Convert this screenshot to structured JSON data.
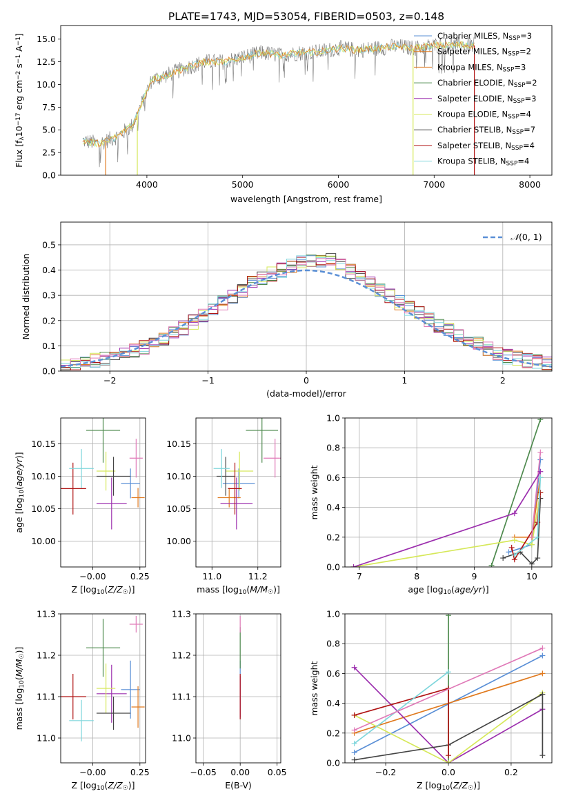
{
  "figure_title": "PLATE=1743, MJD=53054, FIBERID=0503, z=0.148",
  "colors": {
    "c1": "#5a8fd6",
    "c2": "#e07a1f",
    "c3": "#4e8a4e",
    "c4": "#9c2fae",
    "c5": "#d6e85a",
    "c6": "#444444",
    "c7": "#b01414",
    "c8": "#7fd6dc",
    "c9": "#e07ab8",
    "spec": "#777777"
  },
  "chart_data": [
    {
      "id": "spectrum",
      "type": "line",
      "title": "",
      "xlabel": "wavelength [Angstrom, rest frame]",
      "ylabel": "Flux [f_λ10^-17 erg cm^-2 s^-1 A^-1]",
      "xlim": [
        3100,
        8230
      ],
      "ylim": [
        0,
        16.5
      ],
      "xticks": [
        4000,
        5000,
        6000,
        7000,
        8000
      ],
      "yticks": [
        0.0,
        2.5,
        5.0,
        7.5,
        10.0,
        12.5,
        15.0
      ],
      "data_range": [
        3330,
        7420
      ],
      "envelope": {
        "x": [
          3330,
          3500,
          3700,
          3850,
          3950,
          4050,
          4200,
          4400,
          4600,
          4800,
          5000,
          5200,
          5400,
          5600,
          5800,
          6000,
          6200,
          6400,
          6600,
          6800,
          7000,
          7200,
          7420
        ],
        "y": [
          3.8,
          3.5,
          4.3,
          5.5,
          8.0,
          10.5,
          11.0,
          11.8,
          12.5,
          12.5,
          13.0,
          13.5,
          13.2,
          13.5,
          13.6,
          14.0,
          13.8,
          14.0,
          14.2,
          14.0,
          14.3,
          14.4,
          14.3
        ]
      },
      "legend": [
        {
          "label": "Chabrier MILES, N_SSP=3",
          "color": "#5a8fd6"
        },
        {
          "label": "Salpeter MILES, N_SSP=2",
          "color": "#e07a1f"
        },
        {
          "label": "Kroupa MILES, N_SSP=3",
          "color": "#e07a1f"
        },
        {
          "label": "Chabrier ELODIE, N_SSP=2",
          "color": "#4e8a4e"
        },
        {
          "label": "Salpeter ELODIE, N_SSP=3",
          "color": "#9c2fae"
        },
        {
          "label": "Kroupa ELODIE, N_SSP=4",
          "color": "#d6e85a"
        },
        {
          "label": "Chabrier STELIB, N_SSP=7",
          "color": "#444444"
        },
        {
          "label": "Salpeter STELIB, N_SSP=4",
          "color": "#b01414"
        },
        {
          "label": "Kroupa STELIB, N_SSP=4",
          "color": "#7fd6dc"
        }
      ]
    },
    {
      "id": "residuals",
      "type": "line",
      "xlabel": "(data-model)/error",
      "ylabel": "Normed distribution",
      "xlim": [
        -2.5,
        2.5
      ],
      "ylim": [
        0,
        0.59
      ],
      "xticks": [
        -2,
        -1,
        0,
        1,
        2
      ],
      "yticks": [
        0.0,
        0.1,
        0.2,
        0.3,
        0.4,
        0.5
      ],
      "grid": true,
      "legend": [
        {
          "label": "N(0,1)",
          "color": "#5a8fd6",
          "style": "dashed"
        }
      ],
      "bin_width": 0.1,
      "hist_envelope": {
        "x": [
          -2.5,
          -2.0,
          -1.5,
          -1.0,
          -0.5,
          0.0,
          0.3,
          0.5,
          1.0,
          1.5,
          2.0,
          2.5
        ],
        "y": [
          0.02,
          0.05,
          0.11,
          0.23,
          0.36,
          0.44,
          0.44,
          0.38,
          0.26,
          0.15,
          0.06,
          0.025
        ]
      }
    },
    {
      "id": "age_vs_Z",
      "type": "scatter",
      "xlabel": "Z [log10(Z/Z☉)]",
      "ylabel": "age  [log10(age/yr)]",
      "xlim": [
        -0.17,
        0.28
      ],
      "ylim": [
        9.96,
        10.19
      ],
      "xticks": [
        "-0.00",
        "0.25"
      ],
      "yticks": [
        10.0,
        10.05,
        10.1,
        10.15
      ],
      "grid": true,
      "points": [
        {
          "x": 0.2,
          "xerr": 0.05,
          "y": 10.089,
          "yerr": 0.023,
          "color": "#5a8fd6"
        },
        {
          "x": 0.24,
          "xerr": 0.035,
          "y": 10.067,
          "yerr": 0.015,
          "color": "#e07a1f"
        },
        {
          "x": 0.055,
          "xerr": 0.09,
          "y": 10.171,
          "yerr": 0.05,
          "color": "#4e8a4e"
        },
        {
          "x": 0.1,
          "xerr": 0.08,
          "y": 10.058,
          "yerr": 0.04,
          "color": "#9c2fae"
        },
        {
          "x": 0.07,
          "xerr": 0.05,
          "y": 10.108,
          "yerr": 0.03,
          "color": "#d6e85a"
        },
        {
          "x": 0.11,
          "xerr": 0.09,
          "y": 10.1,
          "yerr": 0.03,
          "color": "#444444"
        },
        {
          "x": -0.105,
          "xerr": 0.07,
          "y": 10.081,
          "yerr": 0.04,
          "color": "#b01414"
        },
        {
          "x": -0.06,
          "xerr": 0.065,
          "y": 10.112,
          "yerr": 0.03,
          "color": "#7fd6dc"
        },
        {
          "x": 0.23,
          "xerr": 0.035,
          "y": 10.128,
          "yerr": 0.03,
          "color": "#e07ab8"
        }
      ]
    },
    {
      "id": "age_vs_mass",
      "type": "scatter",
      "xlabel": "mass [log10(M/M☉)]",
      "ylabel": "",
      "xlim": [
        10.93,
        11.3
      ],
      "ylim": [
        9.96,
        10.19
      ],
      "xticks": [
        11.0,
        11.2
      ],
      "yticks": [
        10.0,
        10.05,
        10.1,
        10.15
      ],
      "grid": true,
      "points": [
        {
          "x": 11.117,
          "xerr": 0.07,
          "y": 10.089,
          "yerr": 0.023,
          "color": "#5a8fd6"
        },
        {
          "x": 11.075,
          "xerr": 0.05,
          "y": 10.067,
          "yerr": 0.015,
          "color": "#e07a1f"
        },
        {
          "x": 11.218,
          "xerr": 0.07,
          "y": 10.171,
          "yerr": 0.05,
          "color": "#4e8a4e"
        },
        {
          "x": 11.107,
          "xerr": 0.07,
          "y": 10.058,
          "yerr": 0.04,
          "color": "#9c2fae"
        },
        {
          "x": 11.12,
          "xerr": 0.06,
          "y": 10.108,
          "yerr": 0.03,
          "color": "#d6e85a"
        },
        {
          "x": 11.06,
          "xerr": 0.04,
          "y": 10.1,
          "yerr": 0.03,
          "color": "#444444"
        },
        {
          "x": 11.1,
          "xerr": 0.03,
          "y": 10.081,
          "yerr": 0.04,
          "color": "#b01414"
        },
        {
          "x": 11.042,
          "xerr": 0.035,
          "y": 10.112,
          "yerr": 0.03,
          "color": "#7fd6dc"
        },
        {
          "x": 11.275,
          "xerr": 0.05,
          "y": 10.128,
          "yerr": 0.03,
          "color": "#e07ab8"
        }
      ]
    },
    {
      "id": "weight_vs_age",
      "type": "line",
      "xlabel": "age  [log10(age/yr)]",
      "ylabel": "mass weight",
      "xlim": [
        6.75,
        10.35
      ],
      "ylim": [
        0,
        1.0
      ],
      "xticks": [
        7,
        8,
        9,
        10
      ],
      "yticks": [
        0.0,
        0.2,
        0.4,
        0.6,
        0.8,
        1.0
      ],
      "grid": true,
      "series": [
        {
          "color": "#5a8fd6",
          "x": [
            9.6,
            10.0,
            10.15
          ],
          "y": [
            0.1,
            0.15,
            0.72
          ]
        },
        {
          "color": "#e07a1f",
          "x": [
            9.7,
            10.0,
            10.15
          ],
          "y": [
            0.2,
            0.2,
            0.6
          ]
        },
        {
          "color": "#4e8a4e",
          "x": [
            9.3,
            10.15
          ],
          "y": [
            0.01,
            0.99
          ]
        },
        {
          "color": "#d6e85a",
          "x": [
            6.9,
            9.7,
            10.0,
            10.15
          ],
          "y": [
            0.0,
            0.18,
            0.15,
            0.5
          ]
        },
        {
          "color": "#444444",
          "x": [
            9.5,
            9.8,
            10.0,
            10.1,
            10.15
          ],
          "y": [
            0.06,
            0.1,
            0.02,
            0.06,
            0.46
          ]
        },
        {
          "color": "#b01414",
          "x": [
            9.65,
            9.7,
            10.1,
            10.15
          ],
          "y": [
            0.13,
            0.05,
            0.3,
            0.5
          ]
        },
        {
          "color": "#7fd6dc",
          "x": [
            9.7,
            10.1,
            10.15
          ],
          "y": [
            0.08,
            0.2,
            0.6
          ]
        },
        {
          "color": "#e07ab8",
          "x": [
            10.0,
            10.15
          ],
          "y": [
            0.2,
            0.77
          ]
        },
        {
          "color": "#9c2fae",
          "x": [
            6.9,
            9.7,
            10.15
          ],
          "y": [
            0.0,
            0.36,
            0.64
          ]
        }
      ]
    },
    {
      "id": "mass_vs_Z",
      "type": "scatter",
      "xlabel": "Z [log10(Z/Z☉)]",
      "ylabel": "mass [log10(M/M☉)]",
      "xlim": [
        -0.17,
        0.28
      ],
      "ylim": [
        10.94,
        11.3
      ],
      "xticks": [
        "-0.00",
        "0.25"
      ],
      "yticks": [
        11.0,
        11.1,
        11.2,
        11.3
      ],
      "grid": true,
      "points": [
        {
          "x": 0.2,
          "xerr": 0.05,
          "y": 11.117,
          "yerr": 0.07,
          "color": "#5a8fd6"
        },
        {
          "x": 0.24,
          "xerr": 0.035,
          "y": 11.075,
          "yerr": 0.05,
          "color": "#e07a1f"
        },
        {
          "x": 0.055,
          "xerr": 0.09,
          "y": 11.218,
          "yerr": 0.07,
          "color": "#4e8a4e"
        },
        {
          "x": 0.1,
          "xerr": 0.08,
          "y": 11.107,
          "yerr": 0.07,
          "color": "#9c2fae"
        },
        {
          "x": 0.07,
          "xerr": 0.05,
          "y": 11.12,
          "yerr": 0.06,
          "color": "#d6e85a"
        },
        {
          "x": 0.11,
          "xerr": 0.09,
          "y": 11.06,
          "yerr": 0.04,
          "color": "#444444"
        },
        {
          "x": -0.105,
          "xerr": 0.07,
          "y": 11.1,
          "yerr": 0.055,
          "color": "#b01414"
        },
        {
          "x": -0.06,
          "xerr": 0.065,
          "y": 11.042,
          "yerr": 0.05,
          "color": "#7fd6dc"
        },
        {
          "x": 0.23,
          "xerr": 0.035,
          "y": 11.275,
          "yerr": 0.02,
          "color": "#e07ab8"
        }
      ]
    },
    {
      "id": "mass_vs_ebv",
      "type": "scatter",
      "xlabel": "E(B-V)",
      "ylabel": "",
      "xlim": [
        -0.06,
        0.055
      ],
      "ylim": [
        10.94,
        11.3
      ],
      "xticks": [
        -0.05,
        0.0,
        0.05
      ],
      "yticks": [
        11.0,
        11.1,
        11.2,
        11.3
      ],
      "grid": true,
      "points": [
        {
          "x": 0.0,
          "y": 11.117,
          "yerr": 0.07,
          "color": "#5a8fd6"
        },
        {
          "x": 0.0,
          "y": 11.218,
          "yerr": 0.05,
          "color": "#4e8a4e"
        },
        {
          "x": 0.0,
          "y": 11.1,
          "yerr": 0.05,
          "color": "#9c2fae"
        },
        {
          "x": 0.0,
          "y": 11.1,
          "yerr": 0.055,
          "color": "#b01414"
        },
        {
          "x": 0.0,
          "y": 11.275,
          "yerr": 0.02,
          "color": "#e07ab8"
        }
      ]
    },
    {
      "id": "weight_vs_Z",
      "type": "line",
      "xlabel": "Z [log10(Z/Z☉)]",
      "ylabel": "mass weight",
      "xlim": [
        -0.33,
        0.33
      ],
      "ylim": [
        0,
        1.0
      ],
      "xticks": [
        -0.2,
        0.0,
        0.2
      ],
      "yticks": [
        0.0,
        0.2,
        0.4,
        0.6,
        0.8,
        1.0
      ],
      "grid": true,
      "series": [
        {
          "color": "#5a8fd6",
          "x": [
            -0.3,
            0.3
          ],
          "y": [
            0.07,
            0.72
          ]
        },
        {
          "color": "#e07a1f",
          "x": [
            -0.3,
            0.3
          ],
          "y": [
            0.2,
            0.6
          ]
        },
        {
          "color": "#4e8a4e",
          "x": [
            0.0,
            0.0
          ],
          "y": [
            0.0,
            0.99
          ]
        },
        {
          "color": "#9c2fae",
          "x": [
            -0.3,
            0.0,
            0.3
          ],
          "y": [
            0.64,
            0.0,
            0.36
          ]
        },
        {
          "color": "#d6e85a",
          "x": [
            -0.3,
            0.0,
            0.3
          ],
          "y": [
            0.32,
            0.0,
            0.47
          ]
        },
        {
          "color": "#444444",
          "x": [
            -0.3,
            0.0,
            0.3,
            0.3
          ],
          "y": [
            0.02,
            0.12,
            0.46,
            0.05
          ]
        },
        {
          "color": "#b01414",
          "x": [
            -0.3,
            0.0,
            0.0
          ],
          "y": [
            0.32,
            0.5,
            0.05
          ]
        },
        {
          "color": "#7fd6dc",
          "x": [
            -0.3,
            0.0
          ],
          "y": [
            0.13,
            0.61
          ]
        },
        {
          "color": "#e07ab8",
          "x": [
            -0.3,
            0.3
          ],
          "y": [
            0.22,
            0.77
          ]
        }
      ]
    }
  ]
}
